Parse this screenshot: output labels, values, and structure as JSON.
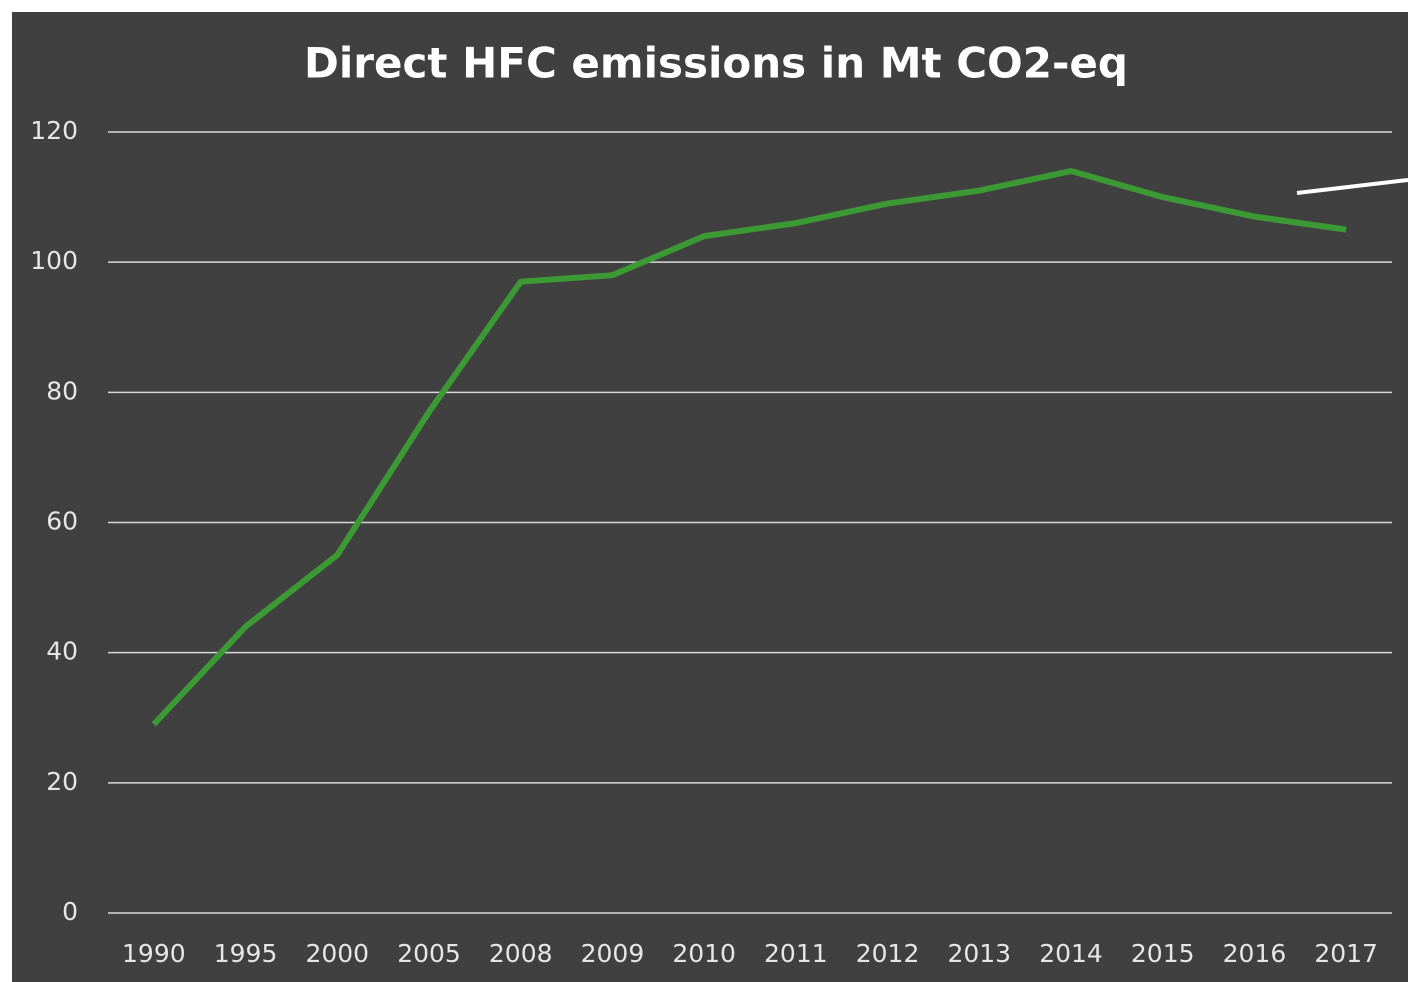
{
  "chart_data": {
    "type": "line",
    "title": "Direct HFC emissions in Mt CO2-eq",
    "categories": [
      "1990",
      "1995",
      "2000",
      "2005",
      "2008",
      "2009",
      "2010",
      "2011",
      "2012",
      "2013",
      "2014",
      "2015",
      "2016",
      "2017"
    ],
    "series": [
      {
        "name": "Direct HFC emissions",
        "color": "#3c9a35",
        "values": [
          29,
          44,
          55,
          77,
          97,
          98,
          104,
          106,
          109,
          111,
          114,
          110,
          107,
          105
        ]
      }
    ],
    "ylim": [
      0,
      120
    ],
    "yticks": [
      0,
      20,
      40,
      60,
      80,
      100,
      120
    ],
    "grid": true
  }
}
